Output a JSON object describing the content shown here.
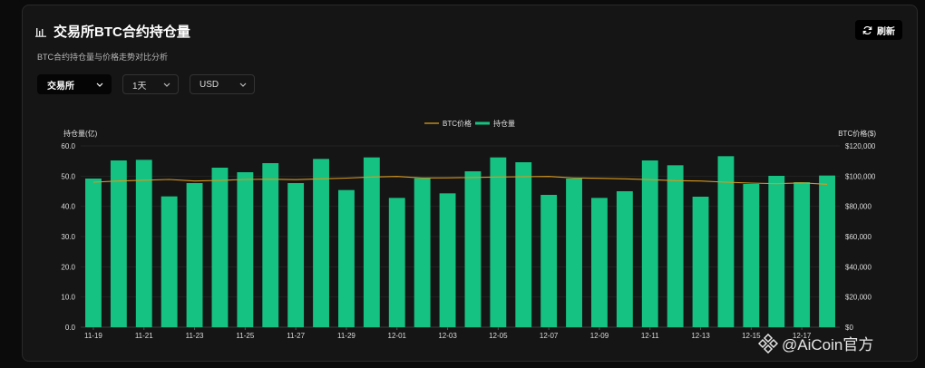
{
  "header": {
    "title": "交易所BTC合约持仓量",
    "subtitle": "BTC合约持仓量与价格走势对比分析",
    "refresh_label": "刷新"
  },
  "filters": {
    "exchange": "交易所",
    "interval": "1天",
    "currency": "USD"
  },
  "watermark": "@AiCoin官方",
  "colors": {
    "bars": "#16c282",
    "line": "#d99a1e",
    "background": "#151515"
  },
  "chart_data": {
    "type": "bar",
    "legend": [
      "BTC价格",
      "持仓量"
    ],
    "legend_position": "top-center",
    "ylabel_left": "持仓量(亿)",
    "ylabel_right": "BTC价格($)",
    "ylim_left": [
      0,
      60
    ],
    "ylim_right": [
      0,
      120000
    ],
    "left_ticks": [
      "0.0",
      "10.0",
      "20.0",
      "30.0",
      "40.0",
      "50.0",
      "60.0"
    ],
    "right_ticks": [
      "$0",
      "$20,000",
      "$40,000",
      "$60,000",
      "$80,000",
      "$100,000",
      "$120,000"
    ],
    "x_tick_labels": [
      "11-19",
      "11-21",
      "11-23",
      "11-25",
      "11-27",
      "11-29",
      "12-01",
      "12-03",
      "12-05",
      "12-07",
      "12-09",
      "12-11",
      "12-13",
      "12-15",
      "12-17"
    ],
    "categories": [
      "11-19",
      "11-20",
      "11-21",
      "11-22",
      "11-23",
      "11-24",
      "11-25",
      "11-26",
      "11-27",
      "11-28",
      "11-29",
      "11-30",
      "12-01",
      "12-02",
      "12-03",
      "12-04",
      "12-05",
      "12-06",
      "12-07",
      "12-08",
      "12-09",
      "12-10",
      "12-11",
      "12-12",
      "12-13",
      "12-14",
      "12-15",
      "12-16",
      "12-17",
      "12-18"
    ],
    "series": [
      {
        "name": "持仓量",
        "type": "bar",
        "axis": "left",
        "values": [
          49.2,
          55.2,
          55.4,
          43.3,
          47.7,
          52.8,
          51.3,
          54.3,
          47.7,
          55.7,
          45.4,
          56.2,
          42.8,
          49.3,
          44.3,
          51.6,
          56.2,
          54.6,
          43.8,
          49.2,
          42.8,
          45.0,
          55.2,
          53.6,
          43.2,
          56.6,
          47.4,
          50.1,
          48.0,
          50.2
        ]
      },
      {
        "name": "BTC价格",
        "type": "line",
        "axis": "right",
        "values": [
          96000,
          96800,
          97300,
          97800,
          96800,
          97200,
          97800,
          98000,
          97700,
          98200,
          98700,
          99400,
          99800,
          98800,
          98900,
          99100,
          99400,
          99600,
          99800,
          98800,
          98600,
          98200,
          97700,
          97000,
          96800,
          96000,
          95400,
          95000,
          95500,
          94600
        ]
      }
    ]
  }
}
